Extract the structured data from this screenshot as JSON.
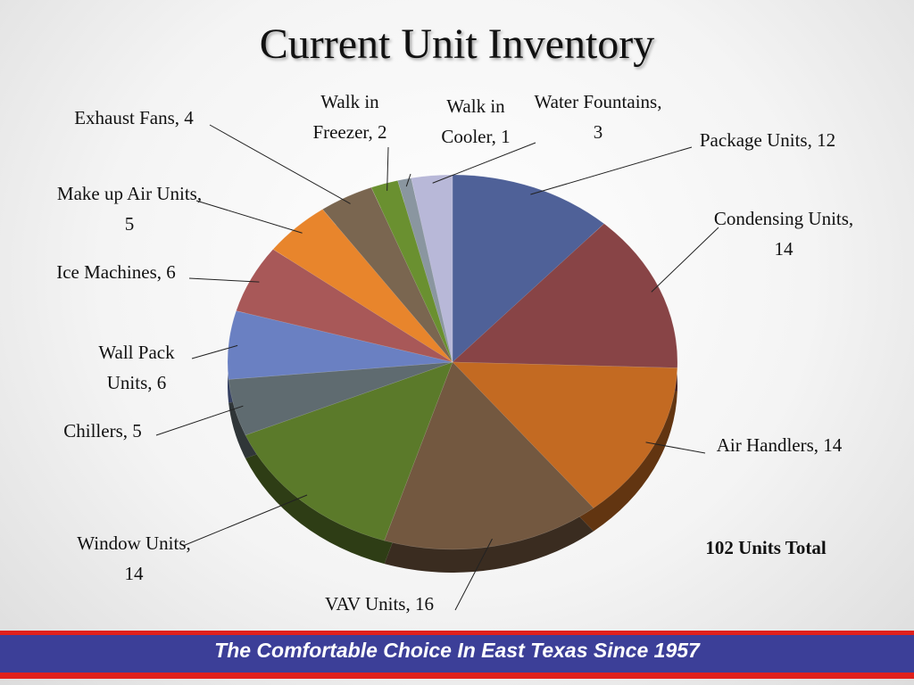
{
  "chart_data": {
    "type": "pie",
    "title": "Current Unit Inventory",
    "categories": [
      "Package Units, 12",
      "Condensing Units, 14",
      "Air Handlers, 14",
      "VAV Units, 16",
      "Window Units, 14",
      "Chillers, 5",
      "Wall Pack Units, 6",
      "Ice Machines, 6",
      "Make up Air Units, 5",
      "Exhaust Fans, 4",
      "Walk in Freezer, 2",
      "Walk in Cooler, 1",
      "Water Fountains, 3"
    ],
    "values": [
      12,
      14,
      14,
      16,
      14,
      5,
      6,
      6,
      5,
      4,
      2,
      1,
      3
    ],
    "colors": [
      "#4f6198",
      "#884446",
      "#c36a22",
      "#735840",
      "#5b7a2a",
      "#5f6b70",
      "#6a80c2",
      "#a85858",
      "#e8852c",
      "#7a6650",
      "#6a9030",
      "#8a96a0",
      "#b8b8d8"
    ],
    "total_label": "102 Units Total"
  },
  "footer": {
    "tagline": "The Comfortable Choice In East Texas Since 1957"
  }
}
